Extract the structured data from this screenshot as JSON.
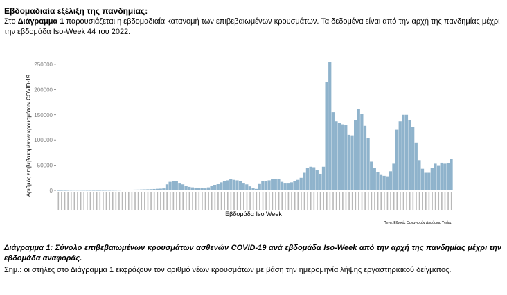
{
  "section_title": "Εβδομαδιαία εξέλιξη της πανδημίας:",
  "intro": {
    "prefix": "Στο ",
    "bold": "Διάγραμμα 1",
    "text": " παρουσιάζεται η εβδομαδιαία κατανομή των επιβεβαιωμένων κρουσμάτων. Τα δεδομένα είναι από την αρχή της πανδημίας μέχρι την εβδομάδα Iso-Week 44 του 2022."
  },
  "caption": "Διάγραμμα 1: Σύνολο επιβεβαιωμένων κρουσμάτων ασθενών COVID-19 ανά εβδομάδα Iso-Week από την αρχή της πανδημίας μέχρι την εβδομάδα αναφοράς.",
  "note": "Σημ.: οι στήλες στο Διάγραμμα 1 εκφράζουν τον αριθμό νέων κρουσμάτων με βάση την ημερομηνία λήψης εργαστηριακού δείγματος.",
  "chart_data": {
    "type": "bar",
    "xlabel": "Εβδομάδα Iso Week",
    "ylabel": "Αριθμός επιβεβαιωμένων κρουσμάτων COVID-19",
    "source": "Πηγή: Εθνικός Οργανισμός Δημόσιας Υγείας",
    "ylim": [
      0,
      265000
    ],
    "yticks": [
      0,
      50000,
      100000,
      150000,
      200000,
      250000
    ],
    "ytick_labels": [
      "0",
      "50000",
      "100000",
      "150000",
      "200000",
      "250000"
    ],
    "grid": false,
    "bar_color": "#8fb3cc",
    "tick_label_color": "#7f7f7f",
    "values": [
      30,
      60,
      120,
      250,
      400,
      500,
      500,
      450,
      400,
      300,
      250,
      200,
      150,
      150,
      200,
      250,
      300,
      400,
      500,
      600,
      800,
      1000,
      1200,
      1300,
      1500,
      1600,
      1800,
      2000,
      2200,
      2400,
      2800,
      3200,
      3500,
      4000,
      12000,
      17000,
      19000,
      18000,
      15000,
      12000,
      9000,
      7000,
      6000,
      5500,
      5000,
      4500,
      4000,
      6000,
      9000,
      11000,
      13000,
      16000,
      18000,
      20000,
      22000,
      21000,
      20000,
      18000,
      15000,
      12000,
      8000,
      5000,
      3000,
      14000,
      18000,
      19000,
      20000,
      22000,
      23000,
      22000,
      17000,
      15000,
      15000,
      16000,
      18000,
      21000,
      25000,
      35000,
      44000,
      47000,
      46000,
      40000,
      33000,
      47000,
      215000,
      254000,
      155000,
      137000,
      134000,
      131000,
      130000,
      110000,
      109000,
      140000,
      162000,
      152000,
      128000,
      104000,
      57000,
      45000,
      36000,
      32000,
      29000,
      28000,
      38000,
      53000,
      120000,
      137000,
      150000,
      150000,
      140000,
      126000,
      95000,
      60000,
      43000,
      35000,
      35000,
      45000,
      53000,
      50000,
      55000,
      53000,
      54000,
      62000
    ]
  }
}
